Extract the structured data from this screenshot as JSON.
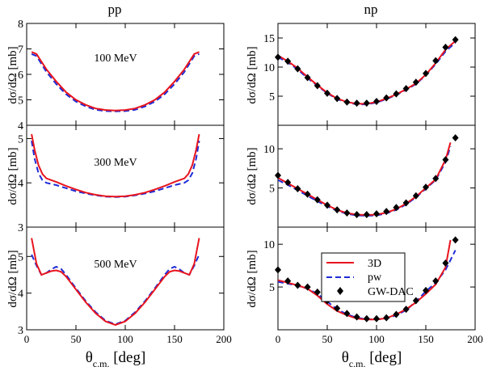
{
  "figure": {
    "columns": [
      "pp",
      "np"
    ],
    "xlabel_main": "θ",
    "xlabel_sub": "c.m.",
    "xlabel_unit": " [deg]",
    "ylabel_main": "dσ/dΩ",
    "ylabel_unit": " [mb]",
    "colors": {
      "3D": "#e8141e",
      "pw": "#1f2bd6",
      "GW-DAC": "#000000"
    }
  },
  "legend": {
    "items": [
      {
        "label": "3D",
        "style": "solid-line",
        "color": "#e8141e"
      },
      {
        "label": "pw",
        "style": "dashed-line",
        "color": "#1f2bd6"
      },
      {
        "label": "GW-DAC",
        "style": "diamond-marker",
        "color": "#000000"
      }
    ],
    "placement": "panel np-500 top-center"
  },
  "chart_data": [
    {
      "id": "pp-100",
      "type": "line",
      "annotation": "100 MeV",
      "xlim": [
        0,
        200
      ],
      "ylim": [
        4,
        8
      ],
      "xticks": [
        0,
        50,
        100,
        150,
        200
      ],
      "yticks": [
        4,
        5,
        6,
        7,
        8
      ],
      "xticklabels": false,
      "yticklabels": [
        "4",
        "5",
        "6",
        "7",
        "8"
      ],
      "series": [
        {
          "name": "3D",
          "x": [
            5,
            10,
            20,
            30,
            40,
            50,
            60,
            70,
            80,
            90,
            100,
            110,
            120,
            130,
            140,
            150,
            160,
            170,
            175
          ],
          "y": [
            6.88,
            6.8,
            6.2,
            5.72,
            5.3,
            5.0,
            4.8,
            4.66,
            4.6,
            4.58,
            4.6,
            4.66,
            4.8,
            5.0,
            5.3,
            5.72,
            6.2,
            6.8,
            6.88
          ]
        },
        {
          "name": "pw",
          "x": [
            5,
            10,
            20,
            30,
            40,
            50,
            60,
            70,
            80,
            90,
            100,
            110,
            120,
            130,
            140,
            150,
            160,
            170,
            175
          ],
          "y": [
            6.8,
            6.72,
            6.1,
            5.62,
            5.22,
            4.93,
            4.74,
            4.61,
            4.56,
            4.55,
            4.56,
            4.61,
            4.74,
            4.93,
            5.22,
            5.62,
            6.1,
            6.72,
            6.8
          ]
        }
      ]
    },
    {
      "id": "np-100",
      "type": "line",
      "annotation": "",
      "xlim": [
        0,
        200
      ],
      "ylim": [
        0,
        17.5
      ],
      "xticks": [
        0,
        50,
        100,
        150,
        200
      ],
      "yticks": [
        5,
        10,
        15
      ],
      "xticklabels": false,
      "yticklabels": [
        "5",
        "10",
        "15"
      ],
      "series": [
        {
          "name": "3D",
          "x": [
            0,
            10,
            20,
            30,
            40,
            50,
            60,
            70,
            80,
            90,
            100,
            110,
            120,
            130,
            140,
            150,
            160,
            170,
            180
          ],
          "y": [
            12.0,
            11.0,
            9.8,
            8.3,
            6.9,
            5.6,
            4.6,
            4.0,
            3.7,
            3.7,
            4.0,
            4.6,
            5.3,
            6.2,
            7.2,
            8.7,
            10.7,
            13.0,
            14.5
          ]
        },
        {
          "name": "pw",
          "x": [
            0,
            10,
            20,
            30,
            40,
            50,
            60,
            70,
            80,
            90,
            100,
            110,
            120,
            130,
            140,
            150,
            160,
            170,
            180
          ],
          "y": [
            11.7,
            10.8,
            9.6,
            8.1,
            6.8,
            5.5,
            4.5,
            3.9,
            3.6,
            3.6,
            3.9,
            4.5,
            5.2,
            6.1,
            7.1,
            8.6,
            10.5,
            12.7,
            14.2
          ]
        },
        {
          "name": "GW-DAC",
          "x": [
            0,
            10,
            20,
            30,
            40,
            50,
            60,
            70,
            80,
            90,
            100,
            110,
            120,
            130,
            140,
            150,
            160,
            170,
            180
          ],
          "y": [
            11.7,
            11.0,
            9.7,
            8.2,
            6.8,
            5.5,
            4.6,
            4.0,
            3.8,
            3.8,
            4.1,
            4.7,
            5.4,
            6.3,
            7.4,
            8.9,
            11.1,
            13.4,
            14.7
          ]
        }
      ]
    },
    {
      "id": "pp-300",
      "type": "line",
      "annotation": "300 MeV",
      "xlim": [
        0,
        200
      ],
      "ylim": [
        3,
        5.3
      ],
      "xticks": [
        0,
        50,
        100,
        150,
        200
      ],
      "yticks": [
        3,
        4,
        5
      ],
      "xticklabels": false,
      "yticklabels": [
        "3",
        "4",
        "5"
      ],
      "series": [
        {
          "name": "3D",
          "x": [
            5,
            8,
            12,
            16,
            20,
            30,
            40,
            50,
            60,
            70,
            80,
            90,
            100,
            110,
            120,
            130,
            140,
            150,
            160,
            164,
            168,
            172,
            175
          ],
          "y": [
            5.1,
            4.75,
            4.4,
            4.2,
            4.1,
            4.02,
            3.93,
            3.85,
            3.78,
            3.73,
            3.7,
            3.69,
            3.7,
            3.73,
            3.78,
            3.85,
            3.93,
            4.02,
            4.1,
            4.2,
            4.4,
            4.75,
            5.1
          ]
        },
        {
          "name": "pw",
          "x": [
            5,
            8,
            12,
            16,
            20,
            30,
            40,
            50,
            60,
            70,
            80,
            90,
            100,
            110,
            120,
            130,
            140,
            150,
            160,
            164,
            168,
            172,
            175
          ],
          "y": [
            4.95,
            4.55,
            4.22,
            4.06,
            4.0,
            3.95,
            3.88,
            3.81,
            3.76,
            3.72,
            3.69,
            3.68,
            3.69,
            3.72,
            3.76,
            3.81,
            3.88,
            3.95,
            4.0,
            4.06,
            4.22,
            4.55,
            4.95
          ]
        }
      ]
    },
    {
      "id": "np-300",
      "type": "line",
      "annotation": "",
      "xlim": [
        0,
        200
      ],
      "ylim": [
        0,
        13
      ],
      "xticks": [
        0,
        50,
        100,
        150,
        200
      ],
      "yticks": [
        5,
        10
      ],
      "xticklabels": false,
      "yticklabels": [
        "5",
        "10"
      ],
      "series": [
        {
          "name": "3D",
          "x": [
            0,
            10,
            20,
            30,
            40,
            50,
            60,
            70,
            80,
            90,
            100,
            110,
            120,
            130,
            140,
            150,
            160,
            170,
            175
          ],
          "y": [
            6.3,
            5.6,
            4.9,
            4.2,
            3.5,
            2.8,
            2.2,
            1.8,
            1.6,
            1.55,
            1.6,
            1.85,
            2.3,
            3.0,
            3.9,
            5.0,
            6.1,
            8.6,
            10.8
          ]
        },
        {
          "name": "pw",
          "x": [
            0,
            10,
            20,
            30,
            40,
            50,
            60,
            70,
            80,
            90,
            100,
            110,
            120,
            130,
            140,
            150,
            160,
            170,
            175
          ],
          "y": [
            6.0,
            5.4,
            4.7,
            4.0,
            3.3,
            2.65,
            2.1,
            1.7,
            1.5,
            1.45,
            1.5,
            1.75,
            2.2,
            2.9,
            3.8,
            4.9,
            6.0,
            8.3,
            10.3
          ]
        },
        {
          "name": "GW-DAC",
          "x": [
            0,
            10,
            20,
            30,
            40,
            50,
            60,
            70,
            80,
            90,
            100,
            110,
            120,
            130,
            140,
            150,
            160,
            170,
            180
          ],
          "y": [
            6.6,
            5.7,
            4.9,
            4.2,
            3.5,
            2.8,
            2.2,
            1.8,
            1.6,
            1.6,
            1.7,
            2.0,
            2.5,
            3.1,
            4.0,
            5.1,
            6.2,
            8.6,
            11.4
          ]
        }
      ]
    },
    {
      "id": "pp-500",
      "type": "line",
      "annotation": "500 MeV",
      "xlim": [
        0,
        200
      ],
      "ylim": [
        3,
        5.8
      ],
      "xticks": [
        0,
        50,
        100,
        150,
        200
      ],
      "yticks": [
        3,
        4,
        5
      ],
      "xticklabels": [
        "0",
        "50",
        "100",
        "150",
        "200"
      ],
      "yticklabels": [
        "3",
        "4",
        "5"
      ],
      "series": [
        {
          "name": "3D",
          "x": [
            5,
            10,
            15,
            20,
            25,
            30,
            35,
            40,
            50,
            60,
            70,
            80,
            90,
            100,
            110,
            120,
            130,
            140,
            145,
            150,
            155,
            160,
            165,
            170,
            175
          ],
          "y": [
            5.5,
            4.8,
            4.5,
            4.55,
            4.6,
            4.62,
            4.58,
            4.45,
            4.1,
            3.75,
            3.45,
            3.23,
            3.13,
            3.23,
            3.45,
            3.75,
            4.1,
            4.45,
            4.58,
            4.62,
            4.6,
            4.55,
            4.5,
            4.8,
            5.5
          ]
        },
        {
          "name": "pw",
          "x": [
            5,
            10,
            15,
            20,
            25,
            30,
            35,
            40,
            50,
            60,
            70,
            80,
            90,
            100,
            110,
            120,
            130,
            140,
            145,
            150,
            155,
            160,
            165,
            170,
            175
          ],
          "y": [
            5.05,
            4.75,
            4.5,
            4.55,
            4.65,
            4.72,
            4.66,
            4.5,
            4.13,
            3.78,
            3.48,
            3.25,
            3.15,
            3.25,
            3.48,
            3.78,
            4.13,
            4.5,
            4.66,
            4.72,
            4.65,
            4.55,
            4.5,
            4.75,
            5.05
          ]
        }
      ]
    },
    {
      "id": "np-500",
      "type": "line",
      "annotation": "",
      "xlim": [
        0,
        200
      ],
      "ylim": [
        0,
        12
      ],
      "xticks": [
        0,
        50,
        100,
        150,
        200
      ],
      "yticks": [
        5,
        10
      ],
      "xticklabels": [
        "0",
        "50",
        "100",
        "150",
        "200"
      ],
      "yticklabels": [
        "5",
        "10"
      ],
      "series": [
        {
          "name": "3D",
          "x": [
            0,
            10,
            20,
            30,
            40,
            50,
            60,
            70,
            80,
            90,
            100,
            110,
            120,
            130,
            140,
            150,
            160,
            170,
            175
          ],
          "y": [
            5.8,
            5.5,
            5.2,
            4.8,
            4.0,
            3.0,
            2.2,
            1.7,
            1.3,
            1.2,
            1.2,
            1.35,
            1.8,
            2.4,
            3.2,
            4.2,
            5.3,
            7.3,
            10.5
          ]
        },
        {
          "name": "pw",
          "x": [
            0,
            10,
            20,
            30,
            40,
            50,
            60,
            70,
            80,
            90,
            100,
            110,
            120,
            130,
            140,
            150,
            160,
            170,
            180
          ],
          "y": [
            5.6,
            5.4,
            5.15,
            4.8,
            4.2,
            3.3,
            2.4,
            1.8,
            1.4,
            1.25,
            1.2,
            1.3,
            1.7,
            2.3,
            3.3,
            4.5,
            5.5,
            7.0,
            9.3
          ]
        },
        {
          "name": "GW-DAC",
          "x": [
            0,
            10,
            20,
            30,
            40,
            50,
            60,
            70,
            80,
            90,
            100,
            110,
            120,
            130,
            140,
            150,
            160,
            170,
            180
          ],
          "y": [
            7.0,
            5.7,
            5.2,
            5.0,
            4.4,
            3.4,
            2.5,
            1.9,
            1.5,
            1.3,
            1.3,
            1.4,
            1.8,
            2.4,
            3.4,
            4.6,
            5.7,
            7.8,
            10.5
          ]
        }
      ]
    }
  ]
}
